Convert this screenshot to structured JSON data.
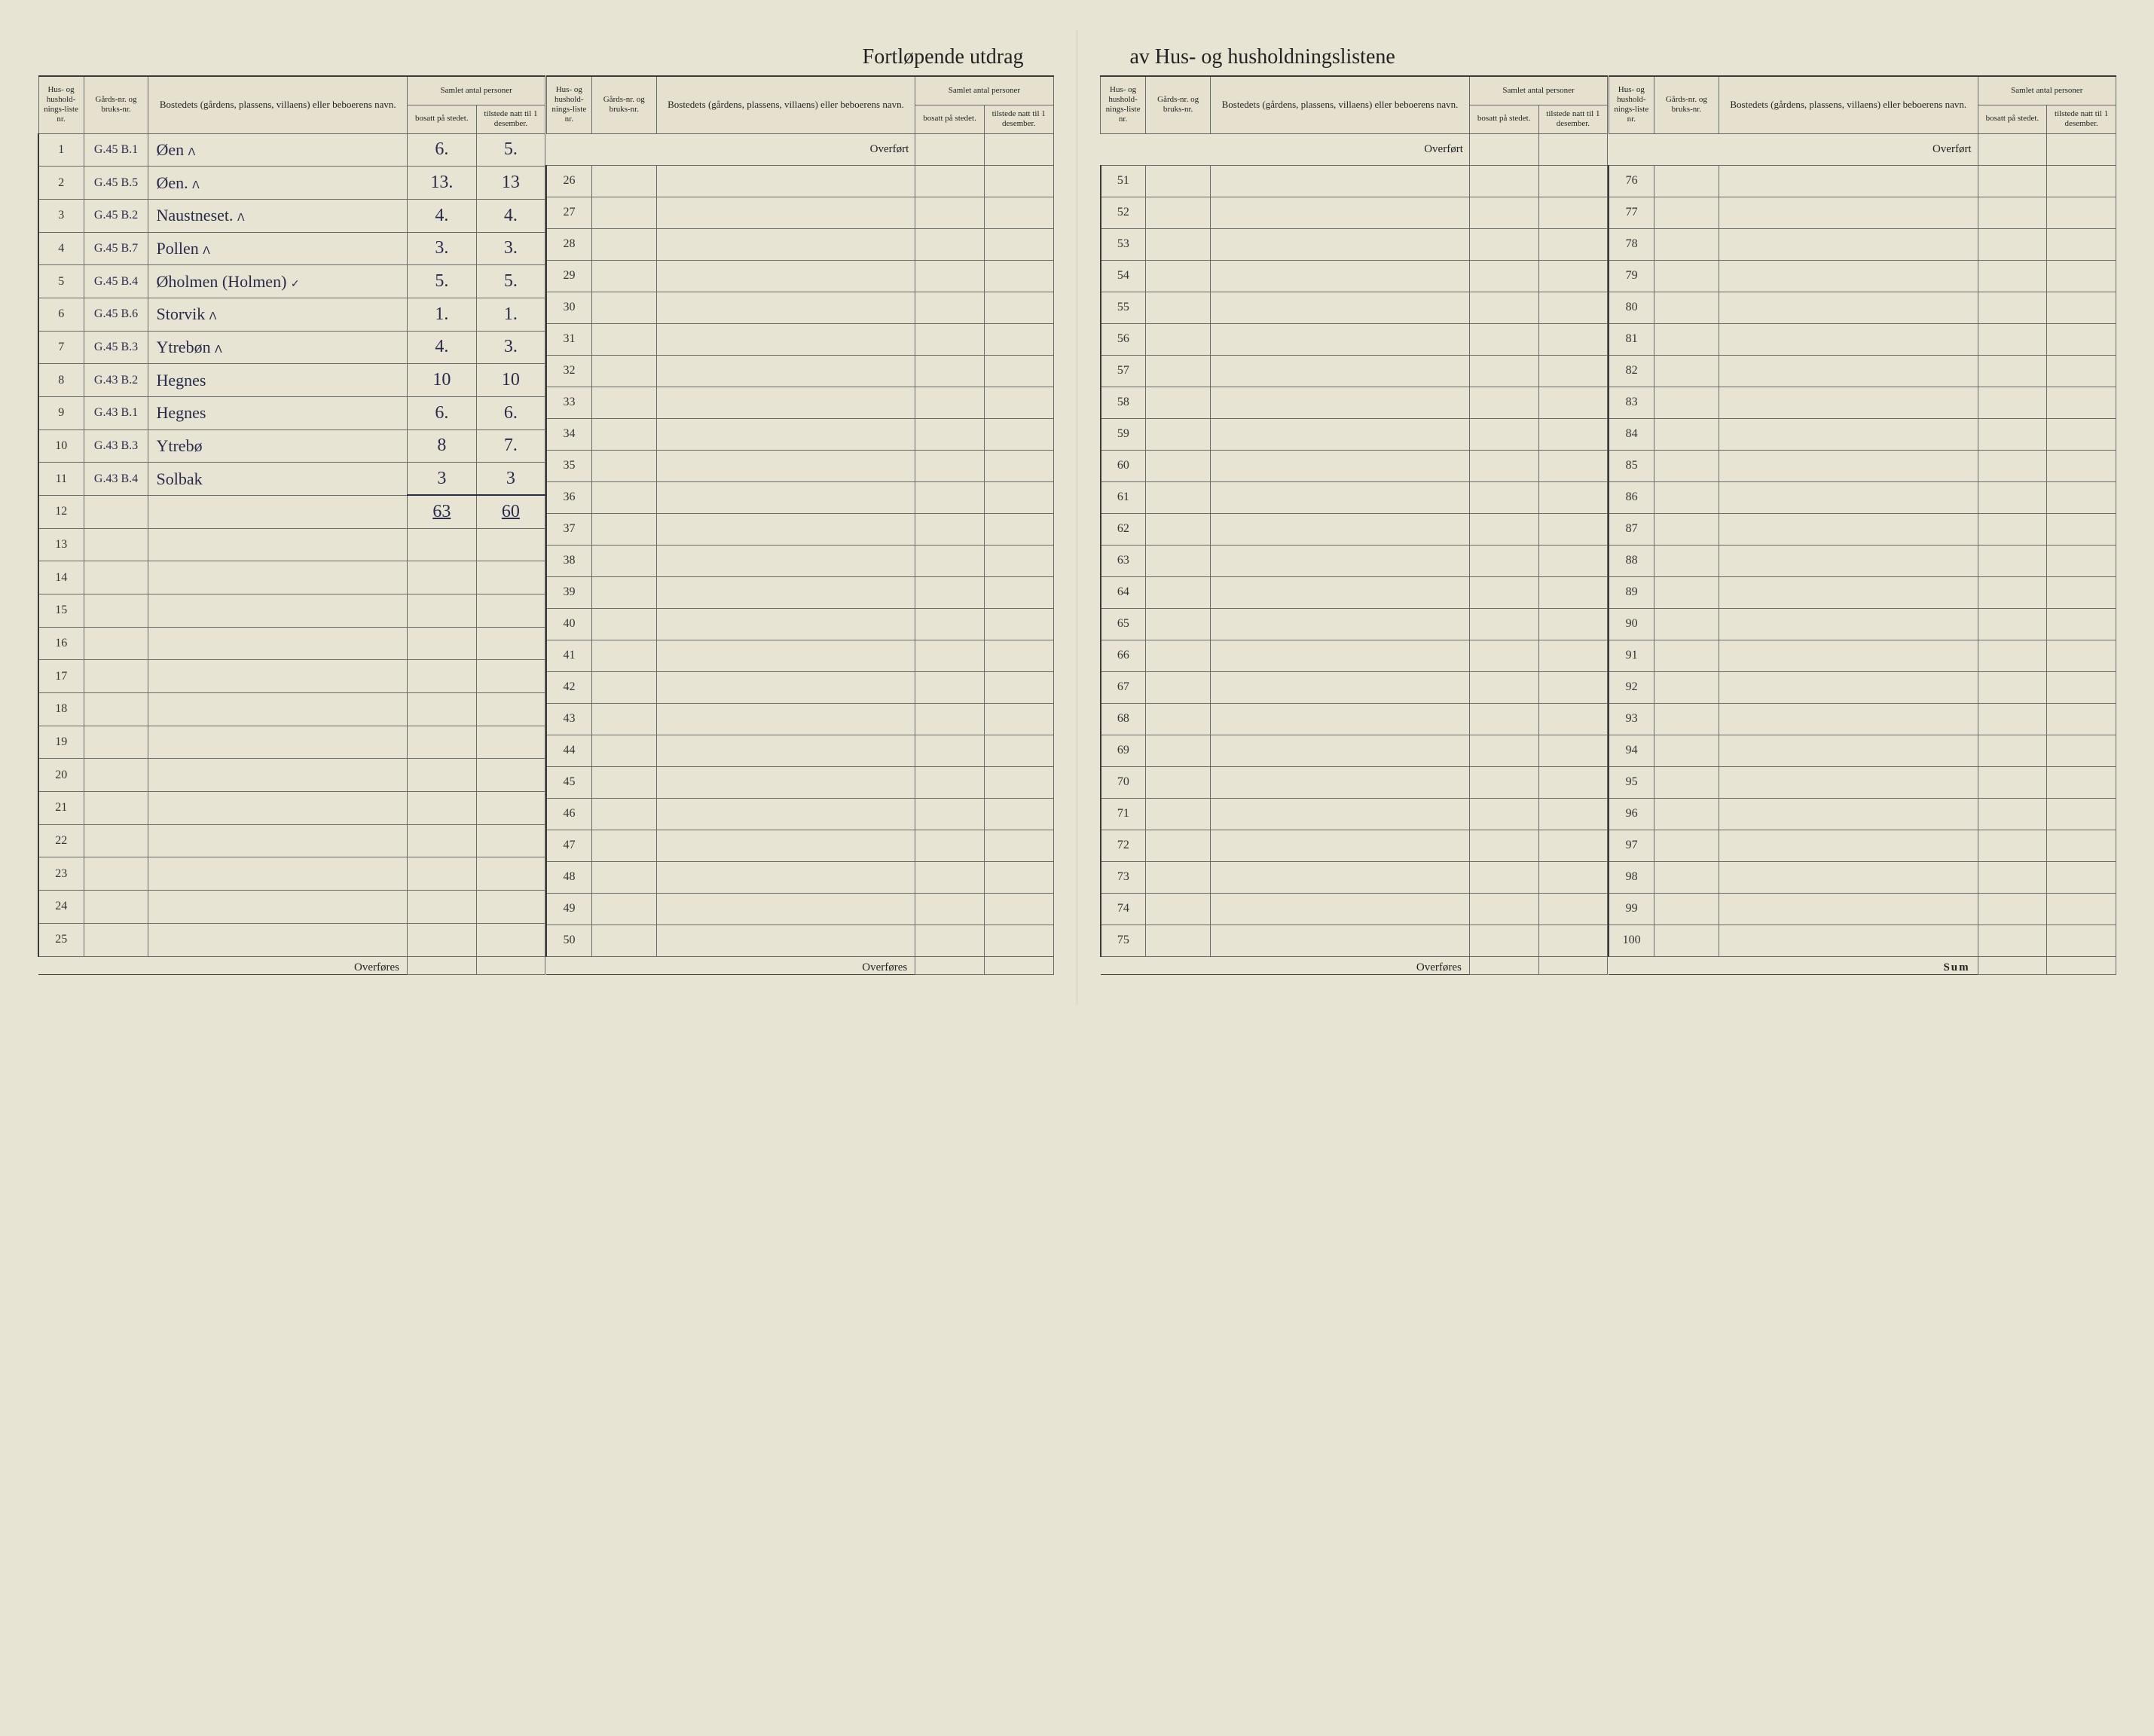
{
  "title_left": "Fortløpende utdrag",
  "title_right": "av Hus- og husholdningslistene",
  "headers": {
    "liste": "Hus- og hushold-nings-liste nr.",
    "gard": "Gårds-nr. og bruks-nr.",
    "bosted": "Bostedets (gårdens, plassens, villaens) eller beboerens navn.",
    "samlet": "Samlet antal personer",
    "bosatt": "bosatt på stedet.",
    "tilstede": "tilstede natt til 1 desember."
  },
  "overfort": "Overført",
  "overfores": "Overføres",
  "sum": "Sum",
  "totals": {
    "bosatt": "63",
    "tilstede": "60"
  },
  "rows_block1": [
    {
      "n": "1",
      "gard": "G.45 B.1",
      "name": "Øen",
      "mark": "ᐱ",
      "b": "6.",
      "t": "5."
    },
    {
      "n": "2",
      "gard": "G.45 B.5",
      "name": "Øen.",
      "mark": "ᐱ",
      "b": "13.",
      "t": "13"
    },
    {
      "n": "3",
      "gard": "G.45 B.2",
      "name": "Naustneset.",
      "mark": "ᐱ",
      "b": "4.",
      "t": "4."
    },
    {
      "n": "4",
      "gard": "G.45 B.7",
      "name": "Pollen",
      "mark": "ᐱ",
      "b": "3.",
      "t": "3."
    },
    {
      "n": "5",
      "gard": "G.45 B.4",
      "name": "Øholmen (Holmen)",
      "mark": "✓",
      "b": "5.",
      "t": "5."
    },
    {
      "n": "6",
      "gard": "G.45 B.6",
      "name": "Storvik",
      "mark": "ᐱ",
      "b": "1.",
      "t": "1."
    },
    {
      "n": "7",
      "gard": "G.45 B.3",
      "name": "Ytrebøn",
      "mark": "ᐱ",
      "b": "4.",
      "t": "3."
    },
    {
      "n": "8",
      "gard": "G.43 B.2",
      "name": "Hegnes",
      "mark": "",
      "b": "10",
      "t": "10"
    },
    {
      "n": "9",
      "gard": "G.43 B.1",
      "name": "Hegnes",
      "mark": "",
      "b": "6.",
      "t": "6."
    },
    {
      "n": "10",
      "gard": "G.43 B.3",
      "name": "Ytrebø",
      "mark": "",
      "b": "8",
      "t": "7."
    },
    {
      "n": "11",
      "gard": "G.43 B.4",
      "name": "Solbak",
      "mark": "",
      "b": "3",
      "t": "3"
    }
  ],
  "empty_ranges": {
    "block1_rest": [
      12,
      13,
      14,
      15,
      16,
      17,
      18,
      19,
      20,
      21,
      22,
      23,
      24,
      25
    ],
    "block2": [
      26,
      27,
      28,
      29,
      30,
      31,
      32,
      33,
      34,
      35,
      36,
      37,
      38,
      39,
      40,
      41,
      42,
      43,
      44,
      45,
      46,
      47,
      48,
      49,
      50
    ],
    "block3": [
      51,
      52,
      53,
      54,
      55,
      56,
      57,
      58,
      59,
      60,
      61,
      62,
      63,
      64,
      65,
      66,
      67,
      68,
      69,
      70,
      71,
      72,
      73,
      74,
      75
    ],
    "block4": [
      76,
      77,
      78,
      79,
      80,
      81,
      82,
      83,
      84,
      85,
      86,
      87,
      88,
      89,
      90,
      91,
      92,
      93,
      94,
      95,
      96,
      97,
      98,
      99,
      100
    ]
  },
  "colors": {
    "paper": "#e8e4d4",
    "rule": "#6a6a6a",
    "heavy_rule": "#3a3a3a",
    "ink": "#2a2a4a"
  }
}
